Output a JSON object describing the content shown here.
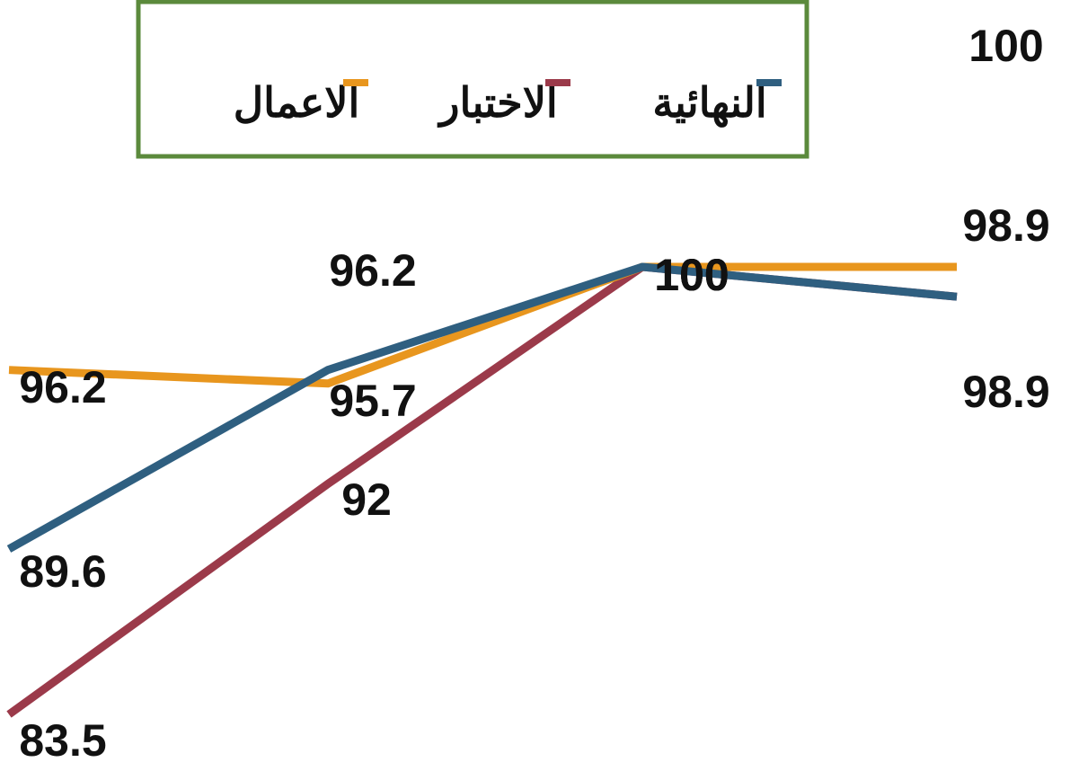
{
  "chart_data": {
    "type": "line",
    "series": [
      {
        "name": "الاختبار",
        "color": "#9b3a4a",
        "values": [
          83.5,
          92,
          100,
          98.9
        ]
      },
      {
        "name": "الاعمال",
        "color": "#e8961e",
        "values": [
          96.2,
          95.7,
          100,
          100
        ]
      },
      {
        "name": "النهائية",
        "color": "#2f5f80",
        "values": [
          89.6,
          96.2,
          100,
          98.9
        ]
      }
    ],
    "legend": "top"
  }
}
